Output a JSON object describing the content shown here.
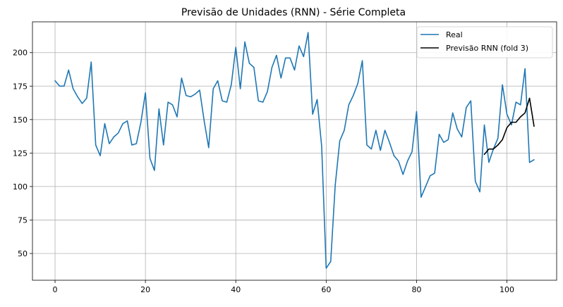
{
  "chart_data": {
    "type": "line",
    "title": "Previsão de Unidades (RNN) - Série Completa",
    "xlabel": "",
    "ylabel": "",
    "xlim": [
      -5,
      111
    ],
    "ylim": [
      30,
      223
    ],
    "xticks": [
      0,
      20,
      40,
      60,
      80,
      100
    ],
    "yticks": [
      50,
      75,
      100,
      125,
      150,
      175,
      200
    ],
    "grid": true,
    "legend_position": "top-right",
    "series": [
      {
        "name": "Real",
        "color": "#1f77b4",
        "x_start": 0,
        "values": [
          179,
          175,
          175,
          187,
          173,
          167,
          162,
          166,
          193,
          131,
          123,
          147,
          132,
          137,
          140,
          147,
          149,
          131,
          132,
          148,
          170,
          121,
          112,
          158,
          131,
          163,
          161,
          152,
          181,
          168,
          167,
          169,
          172,
          149,
          129,
          173,
          179,
          164,
          163,
          176,
          204,
          173,
          208,
          192,
          189,
          164,
          163,
          171,
          189,
          198,
          181,
          196,
          196,
          187,
          205,
          197,
          215,
          154,
          165,
          130,
          39,
          44,
          101,
          134,
          142,
          161,
          168,
          177,
          194,
          131,
          128,
          142,
          127,
          142,
          133,
          123,
          119,
          109,
          119,
          126,
          156,
          92,
          100,
          108,
          110,
          139,
          133,
          135,
          155,
          143,
          137,
          159,
          164,
          104,
          96,
          146,
          118,
          128,
          136,
          176,
          154,
          146,
          163,
          161,
          188,
          118,
          120
        ]
      },
      {
        "name": "Previsão RNN (fold 3)",
        "color": "#000000",
        "x_start": 95,
        "values": [
          124,
          128,
          128,
          131,
          135,
          144,
          148,
          148,
          152,
          155,
          166,
          145
        ]
      }
    ]
  }
}
